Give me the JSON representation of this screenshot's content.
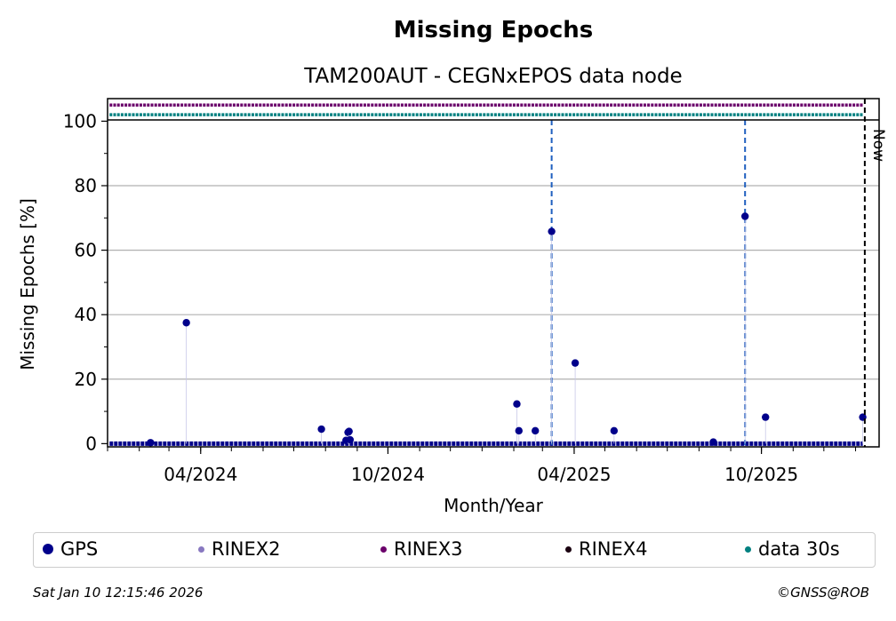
{
  "chart_data": {
    "type": "scatter",
    "title": "Missing Epochs",
    "subtitle": "TAM200AUT - CEGNxEPOS data node",
    "xlabel": "Month/Year",
    "ylabel": "Missing Epochs [%]",
    "ylim": [
      -1,
      107
    ],
    "xlim": [
      "2024-01-01",
      "2026-01-24"
    ],
    "y_ticks": [
      "0",
      "20",
      "40",
      "60",
      "80",
      "100"
    ],
    "x_ticks": [
      "04/2024",
      "10/2024",
      "04/2025",
      "10/2025"
    ],
    "x_tick_dates": [
      "2024-04-01",
      "2024-10-01",
      "2025-04-01",
      "2025-10-01"
    ],
    "grid": true,
    "now_label": "Now",
    "now_date": "2026-01-10",
    "vertical_markers": [
      "2025-03-10",
      "2025-09-15"
    ],
    "gps_points": [
      {
        "x": "2024-02-12",
        "y": 0.3
      },
      {
        "x": "2024-03-18",
        "y": 37.5
      },
      {
        "x": "2024-07-28",
        "y": 4.5
      },
      {
        "x": "2024-08-21",
        "y": 1.0
      },
      {
        "x": "2024-08-23",
        "y": 3.5
      },
      {
        "x": "2024-08-24",
        "y": 3.8
      },
      {
        "x": "2024-08-25",
        "y": 1.2
      },
      {
        "x": "2025-02-04",
        "y": 12.3
      },
      {
        "x": "2025-02-06",
        "y": 4.0
      },
      {
        "x": "2025-02-22",
        "y": 4.0
      },
      {
        "x": "2025-03-10",
        "y": 65.8
      },
      {
        "x": "2025-04-02",
        "y": 25.0
      },
      {
        "x": "2025-05-10",
        "y": 4.0
      },
      {
        "x": "2025-08-15",
        "y": 0.5
      },
      {
        "x": "2025-09-15",
        "y": 70.5
      },
      {
        "x": "2025-10-05",
        "y": 8.2
      },
      {
        "x": "2026-01-08",
        "y": 8.2
      }
    ],
    "data_start": "2024-01-03",
    "data_end": "2026-01-08",
    "rinex3_level": 105,
    "data30s_level": 102,
    "colors": {
      "gps": "#00008b",
      "rinex2": "#8878c0",
      "rinex3": "#6b006b",
      "rinex4": "#1a0010",
      "data30s": "#008080",
      "marker_line": "#1f5fbf",
      "grid": "#b0b0b0"
    },
    "legend": [
      {
        "label": "GPS",
        "color": "#00008b",
        "size": 12
      },
      {
        "label": "RINEX2",
        "color": "#8878c0",
        "size": 7
      },
      {
        "label": "RINEX3",
        "color": "#6b006b",
        "size": 7
      },
      {
        "label": "RINEX4",
        "color": "#1a0010",
        "size": 7
      },
      {
        "label": "data 30s",
        "color": "#008080",
        "size": 7
      }
    ],
    "legend_placement": "bottom"
  },
  "footer": {
    "timestamp": "Sat Jan 10 12:15:46 2026",
    "credit": "©GNSS@ROB"
  }
}
